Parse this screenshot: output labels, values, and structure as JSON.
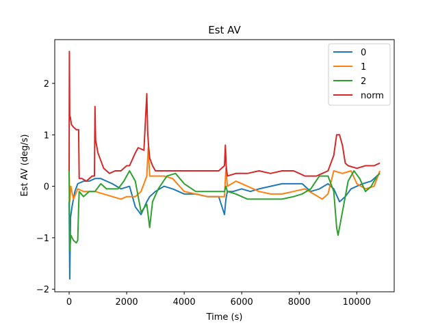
{
  "chart_data": {
    "type": "line",
    "title": "Est AV",
    "xlabel": "Time (s)",
    "ylabel": "Est AV (deg/s)",
    "xlim": [
      -500,
      11300
    ],
    "ylim": [
      -2.05,
      2.85
    ],
    "xticks": [
      0,
      2000,
      4000,
      6000,
      8000,
      10000
    ],
    "xtick_labels": [
      "0",
      "2000",
      "4000",
      "6000",
      "8000",
      "10000"
    ],
    "yticks": [
      -2,
      -1,
      0,
      1,
      2
    ],
    "ytick_labels": [
      "−2",
      "−1",
      "0",
      "1",
      "2"
    ],
    "grid": false,
    "legend_position": "top-right",
    "series": [
      {
        "name": "0",
        "color": "#1f77b4",
        "x": [
          0,
          20,
          50,
          100,
          200,
          300,
          500,
          700,
          900,
          1100,
          1300,
          1500,
          1800,
          2100,
          2300,
          2500,
          2700,
          2800,
          3000,
          3300,
          3600,
          4000,
          4400,
          4800,
          5200,
          5400,
          5450,
          5500,
          5700,
          6000,
          6300,
          6600,
          7000,
          7400,
          7800,
          8100,
          8400,
          8700,
          9000,
          9200,
          9400,
          9600,
          9800,
          10000,
          10200,
          10500,
          10800
        ],
        "y": [
          -0.3,
          -1.8,
          -0.6,
          -0.4,
          -0.1,
          0.05,
          0.1,
          0.1,
          0.15,
          0.15,
          0.1,
          0.05,
          -0.05,
          0.0,
          -0.4,
          -0.55,
          -0.3,
          -0.2,
          -0.1,
          0.0,
          -0.05,
          -0.15,
          -0.15,
          -0.2,
          -0.2,
          -0.55,
          -0.25,
          -0.1,
          -0.1,
          -0.05,
          -0.1,
          -0.05,
          0.0,
          0.05,
          0.05,
          0.05,
          -0.1,
          -0.05,
          0.05,
          -0.05,
          -0.3,
          -0.2,
          -0.05,
          0.0,
          0.05,
          0.1,
          0.25
        ]
      },
      {
        "name": "1",
        "color": "#ff7f0e",
        "x": [
          0,
          20,
          60,
          150,
          300,
          500,
          700,
          900,
          1200,
          1500,
          1800,
          2000,
          2300,
          2500,
          2700,
          2750,
          2800,
          3000,
          3300,
          3600,
          4000,
          4400,
          4800,
          5200,
          5400,
          5450,
          5500,
          5800,
          6200,
          6600,
          7000,
          7400,
          7800,
          8200,
          8500,
          8800,
          9000,
          9200,
          9500,
          9800,
          10000,
          10300,
          10600,
          10800
        ],
        "y": [
          0.3,
          -0.3,
          0.0,
          -0.25,
          -0.05,
          -0.1,
          -0.1,
          -0.1,
          -0.15,
          -0.2,
          -0.25,
          -0.2,
          -0.2,
          -0.1,
          0.2,
          0.75,
          0.2,
          0.2,
          0.2,
          0.15,
          -0.1,
          -0.15,
          -0.2,
          -0.2,
          -0.2,
          0.35,
          0.0,
          0.1,
          0.0,
          -0.1,
          -0.15,
          -0.15,
          -0.1,
          -0.05,
          -0.15,
          -0.25,
          -0.15,
          0.3,
          0.25,
          0.3,
          0.05,
          -0.05,
          0.0,
          0.3
        ]
      },
      {
        "name": "2",
        "color": "#2ca02c",
        "x": [
          0,
          20,
          60,
          150,
          250,
          300,
          330,
          350,
          500,
          700,
          900,
          1100,
          1300,
          1500,
          1700,
          1900,
          2100,
          2300,
          2500,
          2700,
          2800,
          2900,
          3100,
          3400,
          3700,
          4000,
          4400,
          4800,
          5200,
          5400,
          5450,
          5500,
          5800,
          6200,
          6600,
          7000,
          7400,
          7800,
          8100,
          8400,
          8700,
          9000,
          9200,
          9300,
          9350,
          9400,
          9500,
          9700,
          9900,
          10100,
          10300,
          10500,
          10700,
          10800
        ],
        "y": [
          0.3,
          -1.25,
          -0.95,
          -1.05,
          -1.1,
          -1.05,
          -0.4,
          -0.1,
          -0.2,
          -0.1,
          -0.1,
          0.05,
          -0.05,
          -0.05,
          -0.05,
          0.1,
          0.3,
          0.1,
          -0.5,
          -0.35,
          -0.8,
          -0.3,
          -0.05,
          0.2,
          0.25,
          0.05,
          -0.1,
          -0.1,
          -0.1,
          -0.1,
          0.0,
          -0.1,
          -0.15,
          -0.25,
          -0.25,
          -0.25,
          -0.25,
          -0.2,
          -0.15,
          -0.05,
          0.2,
          0.2,
          -0.1,
          -0.8,
          -0.95,
          -0.8,
          -0.5,
          0.1,
          0.3,
          0.15,
          -0.1,
          0.0,
          0.2,
          0.25
        ]
      },
      {
        "name": "norm",
        "color": "#d62728",
        "x": [
          0,
          10,
          20,
          40,
          80,
          150,
          250,
          330,
          350,
          450,
          600,
          800,
          880,
          900,
          920,
          1000,
          1200,
          1400,
          1600,
          1800,
          2000,
          2100,
          2300,
          2400,
          2600,
          2700,
          2730,
          2760,
          2800,
          2900,
          3000,
          3200,
          3600,
          4000,
          4400,
          4800,
          5200,
          5400,
          5430,
          5460,
          5500,
          5800,
          6200,
          6600,
          7000,
          7400,
          7800,
          8000,
          8200,
          8600,
          9000,
          9200,
          9300,
          9400,
          9500,
          9600,
          9700,
          10000,
          10300,
          10600,
          10800
        ],
        "y": [
          0.3,
          2.62,
          1.35,
          1.35,
          1.2,
          1.15,
          1.1,
          1.1,
          0.15,
          0.15,
          0.1,
          0.2,
          0.2,
          1.55,
          0.9,
          0.65,
          0.35,
          0.25,
          0.3,
          0.3,
          0.4,
          0.4,
          0.65,
          0.75,
          0.7,
          1.8,
          1.05,
          0.8,
          0.55,
          0.4,
          0.3,
          0.3,
          0.3,
          0.3,
          0.3,
          0.3,
          0.3,
          0.4,
          0.8,
          0.4,
          0.2,
          0.25,
          0.25,
          0.3,
          0.25,
          0.3,
          0.3,
          0.25,
          0.2,
          0.2,
          0.3,
          0.6,
          1.0,
          1.0,
          0.8,
          0.45,
          0.4,
          0.35,
          0.4,
          0.4,
          0.45
        ]
      }
    ]
  }
}
